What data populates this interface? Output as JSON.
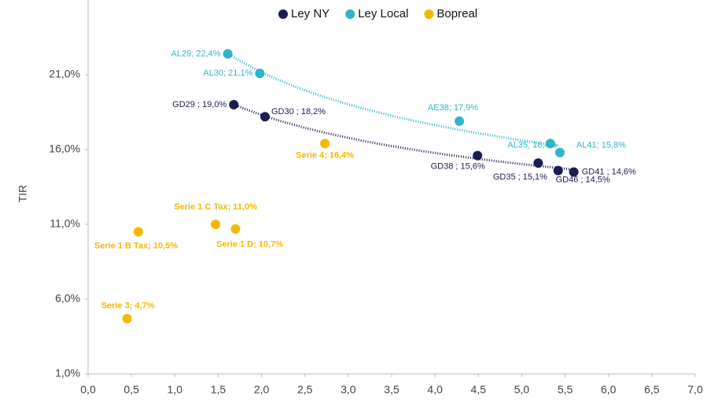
{
  "chart_data": {
    "type": "scatter",
    "y_label": "TIR",
    "xlim": [
      0,
      7
    ],
    "ylim": [
      1,
      26
    ],
    "xticks": [
      {
        "value": 0,
        "label": "0,0"
      },
      {
        "value": 0.5,
        "label": "0,5"
      },
      {
        "value": 1,
        "label": "1,0"
      },
      {
        "value": 1.5,
        "label": "1,5"
      },
      {
        "value": 2,
        "label": "2,0"
      },
      {
        "value": 2.5,
        "label": "2,5"
      },
      {
        "value": 3,
        "label": "3,0"
      },
      {
        "value": 3.5,
        "label": "3,5"
      },
      {
        "value": 4,
        "label": "4,0"
      },
      {
        "value": 4.5,
        "label": "4,5"
      },
      {
        "value": 5,
        "label": "5,0"
      },
      {
        "value": 5.5,
        "label": "5,5"
      },
      {
        "value": 6,
        "label": "6,0"
      },
      {
        "value": 6.5,
        "label": "6,5"
      },
      {
        "value": 7,
        "label": "7,0"
      }
    ],
    "yticks": [
      {
        "value": 1,
        "label": "1,0%"
      },
      {
        "value": 6,
        "label": "6,0%"
      },
      {
        "value": 11,
        "label": "11,0%"
      },
      {
        "value": 16,
        "label": "16,0%"
      },
      {
        "value": 21,
        "label": "21,0%"
      }
    ],
    "legend": "top",
    "trendline": true,
    "series": [
      {
        "name": "Ley NY",
        "color": "#1b1f4f",
        "trendline": true,
        "x": [
          1.68,
          2.04,
          4.49,
          5.19,
          5.6,
          5.42
        ],
        "values": [
          19.0,
          18.2,
          15.6,
          15.1,
          14.5,
          14.6
        ],
        "value_labels": [
          "GD29 ; 19,0%",
          "GD30 ; 18,2%",
          "GD38 ; 15,6%",
          "GD35 ; 15,1%",
          "GD46 ; 14,5%",
          "GD41 ; 14,6%"
        ]
      },
      {
        "name": "Ley Local",
        "color": "#2fb5c8",
        "trendline": true,
        "x": [
          1.61,
          1.98,
          4.28,
          5.33,
          5.44
        ],
        "values": [
          22.4,
          21.1,
          17.9,
          16.4,
          15.8
        ],
        "value_labels": [
          "AL29; 22,4%",
          "AL30; 21,1%",
          "AE38; 17,9%",
          "AL35; 16,4%",
          "AL41; 15,8%"
        ]
      },
      {
        "name": "Bopreal",
        "color": "#f5b800",
        "trendline": false,
        "x": [
          2.73,
          1.47,
          1.7,
          0.58,
          0.45
        ],
        "values": [
          16.4,
          11.0,
          10.7,
          10.5,
          4.7
        ],
        "value_labels": [
          "Serie 4; 16,4%",
          "Serie 1 C Tax; 11,0%",
          "Serie 1 D; 10,7%",
          "Serie 1 B Tax; 10,5%",
          "Serie 3; 4,7%"
        ]
      }
    ]
  }
}
